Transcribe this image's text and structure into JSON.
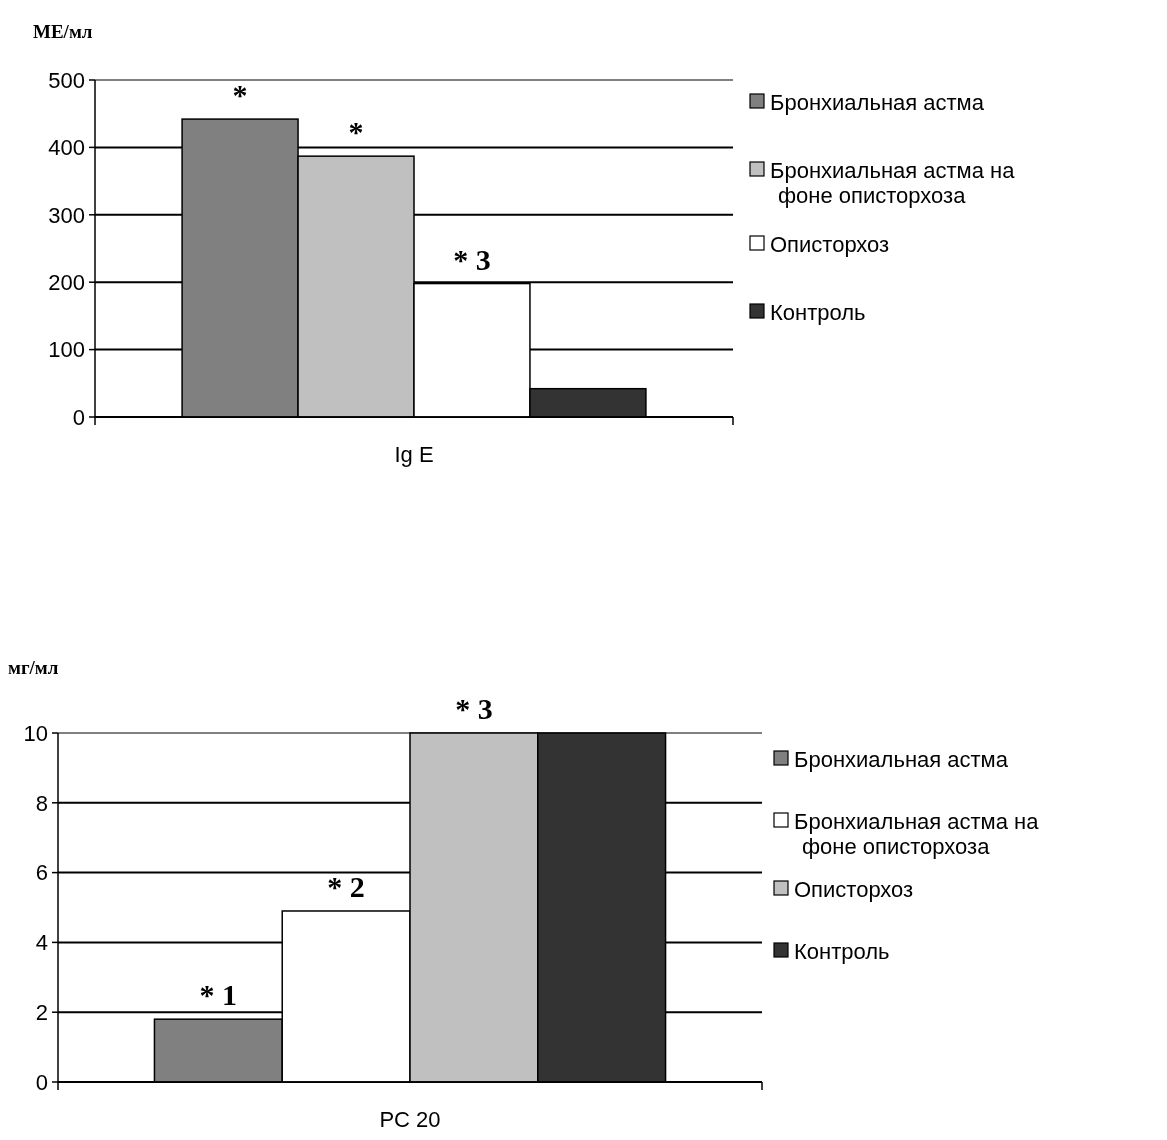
{
  "chart_data": [
    {
      "type": "bar",
      "ylabel": "МЕ/мл",
      "categories": [
        "Ig E"
      ],
      "series": [
        {
          "name": "Бронхиальная астма",
          "color": "#808080",
          "values": [
            442
          ]
        },
        {
          "name": "Бронхиальная астма на фоне описторхоза",
          "color": "#c0c0c0",
          "values": [
            387
          ]
        },
        {
          "name": "Описторхоз",
          "color": "#ffffff",
          "values": [
            198
          ]
        },
        {
          "name": "Контроль",
          "color": "#333333",
          "values": [
            42
          ]
        }
      ],
      "ylim": [
        0,
        500
      ],
      "yticks": [
        0,
        100,
        200,
        300,
        400,
        500
      ],
      "grid": "y",
      "legend": "right",
      "annotations": [
        "*",
        "*",
        "* 3"
      ]
    },
    {
      "type": "bar",
      "ylabel": "мг/мл",
      "categories": [
        "PC 20"
      ],
      "series": [
        {
          "name": "Бронхиальная астма",
          "color": "#808080",
          "values": [
            1.8
          ]
        },
        {
          "name": "Бронхиальная астма на фоне описторхоза",
          "color": "#ffffff",
          "values": [
            4.9
          ]
        },
        {
          "name": "Описторхоз",
          "color": "#c0c0c0",
          "values": [
            10
          ]
        },
        {
          "name": "Контроль",
          "color": "#333333",
          "values": [
            10
          ]
        }
      ],
      "ylim": [
        0,
        10
      ],
      "yticks": [
        0,
        2,
        4,
        6,
        8,
        10
      ],
      "grid": "y",
      "legend": "right",
      "annotations": [
        "* 1",
        "* 2",
        "* 3"
      ]
    }
  ]
}
